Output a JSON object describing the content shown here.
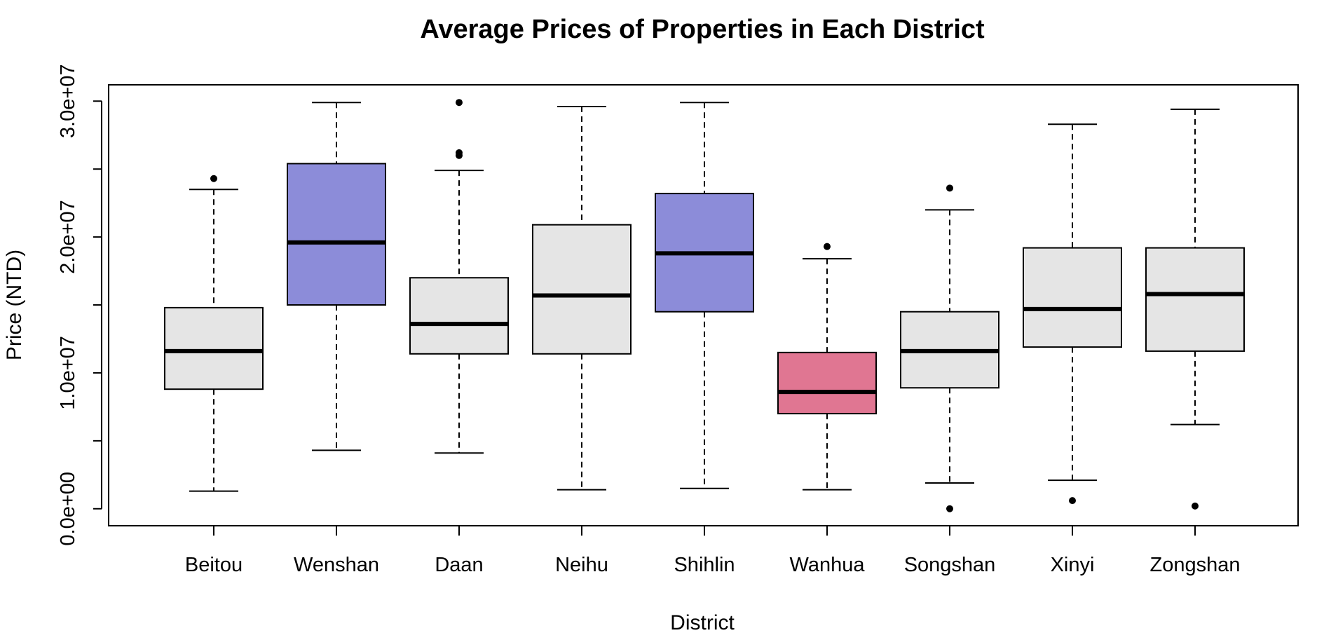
{
  "chart_data": {
    "type": "box",
    "title": "Average Prices of Properties in Each District",
    "xlabel": "District",
    "ylabel": "Price (NTD)",
    "ylim": [
      -1250000,
      31200000
    ],
    "yticks": [
      0,
      5000000,
      10000000,
      15000000,
      20000000,
      25000000,
      30000000
    ],
    "ytick_labels": {
      "0": "0.0e+00",
      "10000000": "1.0e+07",
      "20000000": "2.0e+07",
      "30000000": "3.0e+07"
    },
    "categories": [
      "Beitou",
      "Wenshan",
      "Daan",
      "Neihu",
      "Shihlin",
      "Wanhua",
      "Songshan",
      "Xinyi",
      "Zongshan"
    ],
    "boxes": [
      {
        "min": 1300000,
        "q1": 8800000,
        "median": 11600000,
        "q3": 14800000,
        "max": 23500000,
        "outliers": [
          24300000
        ],
        "color": "#e5e5e5"
      },
      {
        "min": 4300000,
        "q1": 15000000,
        "median": 19600000,
        "q3": 25400000,
        "max": 29900000,
        "outliers": [],
        "color": "#8c8cd9"
      },
      {
        "min": 4100000,
        "q1": 11400000,
        "median": 13600000,
        "q3": 17000000,
        "max": 24900000,
        "outliers": [
          26000000,
          26200000,
          29900000
        ],
        "color": "#e5e5e5"
      },
      {
        "min": 1400000,
        "q1": 11400000,
        "median": 15700000,
        "q3": 20900000,
        "max": 29600000,
        "outliers": [],
        "color": "#e5e5e5"
      },
      {
        "min": 1500000,
        "q1": 14500000,
        "median": 18800000,
        "q3": 23200000,
        "max": 29900000,
        "outliers": [],
        "color": "#8c8cd9"
      },
      {
        "min": 1400000,
        "q1": 7000000,
        "median": 8600000,
        "q3": 11500000,
        "max": 18400000,
        "outliers": [
          19300000
        ],
        "color": "#e07692"
      },
      {
        "min": 1900000,
        "q1": 8900000,
        "median": 11600000,
        "q3": 14500000,
        "max": 22000000,
        "outliers": [
          0,
          23600000
        ],
        "color": "#e5e5e5"
      },
      {
        "min": 2100000,
        "q1": 11900000,
        "median": 14700000,
        "q3": 19200000,
        "max": 28300000,
        "outliers": [
          600000
        ],
        "color": "#e5e5e5"
      },
      {
        "min": 6200000,
        "q1": 11600000,
        "median": 15800000,
        "q3": 19200000,
        "max": 29400000,
        "outliers": [
          200000
        ],
        "color": "#e5e5e5"
      }
    ]
  }
}
